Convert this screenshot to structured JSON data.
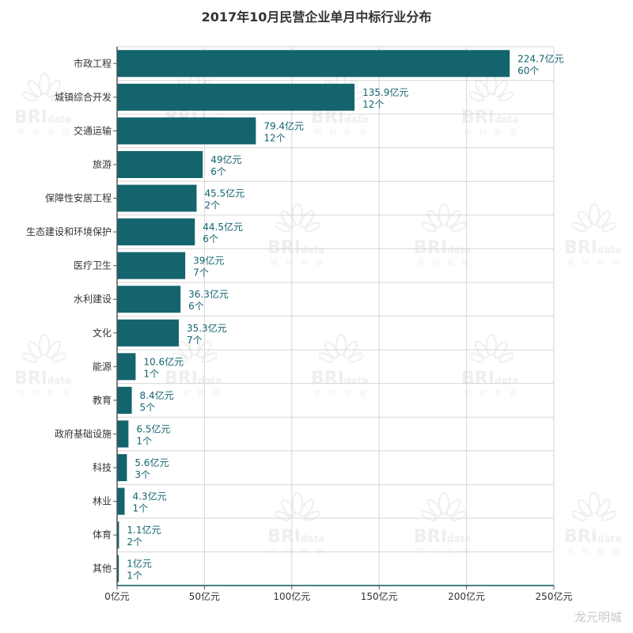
{
  "chart_data": {
    "type": "bar",
    "orientation": "horizontal",
    "title": "2017年10月民营企业单月中标行业分布",
    "categories": [
      "市政工程",
      "城镇综合开发",
      "交通运输",
      "旅游",
      "保障性安居工程",
      "生态建设和环境保护",
      "医疗卫生",
      "水利建设",
      "文化",
      "能源",
      "教育",
      "政府基础设施",
      "科技",
      "林业",
      "体育",
      "其他"
    ],
    "values": [
      224.7,
      135.9,
      79.4,
      49,
      45.5,
      44.5,
      39,
      36.3,
      35.3,
      10.6,
      8.4,
      6.5,
      5.6,
      4.3,
      1.1,
      1
    ],
    "value_labels": [
      "224.7亿元",
      "135.9亿元",
      "79.4亿元",
      "49亿元",
      "45.5亿元",
      "44.5亿元",
      "39亿元",
      "36.3亿元",
      "35.3亿元",
      "10.6亿元",
      "8.4亿元",
      "6.5亿元",
      "5.6亿元",
      "4.3亿元",
      "1.1亿元",
      "1亿元"
    ],
    "count_labels": [
      "60个",
      "12个",
      "12个",
      "6个",
      "2个",
      "6个",
      "7个",
      "6个",
      "7个",
      "1个",
      "5个",
      "1个",
      "3个",
      "1个",
      "2个",
      "1个"
    ],
    "x_ticks": [
      0,
      50,
      100,
      150,
      200,
      250
    ],
    "x_tick_labels": [
      "0亿元",
      "50亿元",
      "100亿元",
      "150亿元",
      "200亿元",
      "250亿元"
    ],
    "xlim": [
      0,
      250
    ],
    "grid": true,
    "legend": "none",
    "bar_color": "#14646e",
    "label_color": "#14646e"
  },
  "watermark": {
    "brand": "BRI",
    "brand_suffix": "data",
    "cn": "明树数据"
  },
  "source_mark": "龙元明城"
}
